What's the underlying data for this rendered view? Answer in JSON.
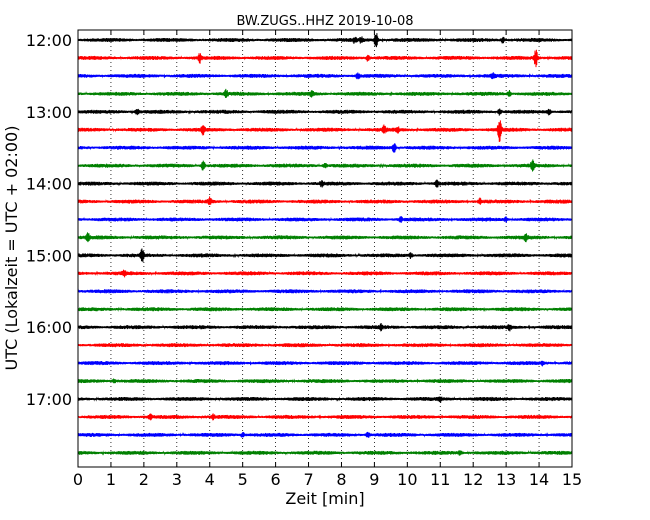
{
  "chart_data": {
    "type": "line",
    "title": "BW.ZUGS..HHZ 2019-10-08",
    "xlabel": "Zeit  [min]",
    "ylabel": "UTC (Lokalzeit = UTC + 02:00)",
    "xlim": [
      0,
      15
    ],
    "x_ticks": [
      "0",
      "1",
      "2",
      "3",
      "4",
      "5",
      "6",
      "7",
      "8",
      "9",
      "10",
      "11",
      "12",
      "13",
      "14",
      "15"
    ],
    "grid": "vertical dotted",
    "y_tick_labels": [
      "12:00",
      "13:00",
      "14:00",
      "15:00",
      "16:00",
      "17:00"
    ],
    "traces_per_hour": 4,
    "trace_minutes": 15,
    "colors": [
      "#000000",
      "#ff0000",
      "#0000ff",
      "#008000"
    ],
    "series": [
      {
        "start": "12:00",
        "color": "#000000",
        "spikes": [
          [
            8.4,
            0.35
          ],
          [
            8.6,
            0.3
          ],
          [
            9.05,
            0.9
          ],
          [
            12.9,
            0.35
          ]
        ]
      },
      {
        "start": "12:15",
        "color": "#ff0000",
        "spikes": [
          [
            3.7,
            0.5
          ],
          [
            8.8,
            0.35
          ],
          [
            13.9,
            1.0
          ]
        ]
      },
      {
        "start": "12:30",
        "color": "#0000ff",
        "spikes": [
          [
            8.5,
            0.35
          ],
          [
            12.6,
            0.3
          ]
        ]
      },
      {
        "start": "12:45",
        "color": "#008000",
        "spikes": [
          [
            4.5,
            0.45
          ],
          [
            7.1,
            0.3
          ],
          [
            13.1,
            0.35
          ]
        ]
      },
      {
        "start": "13:00",
        "color": "#000000",
        "spikes": [
          [
            1.8,
            0.35
          ],
          [
            12.8,
            0.4
          ],
          [
            14.3,
            0.3
          ]
        ]
      },
      {
        "start": "13:15",
        "color": "#ff0000",
        "spikes": [
          [
            3.8,
            0.55
          ],
          [
            9.3,
            0.45
          ],
          [
            9.7,
            0.35
          ],
          [
            12.8,
            1.5
          ]
        ]
      },
      {
        "start": "13:30",
        "color": "#0000ff",
        "spikes": [
          [
            9.6,
            0.65
          ]
        ]
      },
      {
        "start": "13:45",
        "color": "#008000",
        "spikes": [
          [
            3.8,
            0.6
          ],
          [
            7.5,
            0.3
          ],
          [
            13.8,
            0.6
          ]
        ]
      },
      {
        "start": "14:00",
        "color": "#000000",
        "spikes": [
          [
            7.4,
            0.3
          ],
          [
            10.9,
            0.35
          ]
        ]
      },
      {
        "start": "14:15",
        "color": "#ff0000",
        "spikes": [
          [
            4.0,
            0.45
          ],
          [
            12.2,
            0.35
          ]
        ]
      },
      {
        "start": "14:30",
        "color": "#0000ff",
        "spikes": [
          [
            9.8,
            0.3
          ],
          [
            13.0,
            0.25
          ]
        ]
      },
      {
        "start": "14:45",
        "color": "#008000",
        "spikes": [
          [
            0.3,
            0.45
          ],
          [
            13.6,
            0.35
          ]
        ]
      },
      {
        "start": "15:00",
        "color": "#000000",
        "spikes": [
          [
            1.95,
            0.75
          ],
          [
            10.1,
            0.3
          ]
        ]
      },
      {
        "start": "15:15",
        "color": "#ff0000",
        "spikes": [
          [
            1.4,
            0.3
          ]
        ]
      },
      {
        "start": "15:30",
        "color": "#0000ff",
        "spikes": []
      },
      {
        "start": "15:45",
        "color": "#008000",
        "spikes": []
      },
      {
        "start": "16:00",
        "color": "#000000",
        "spikes": [
          [
            9.2,
            0.3
          ],
          [
            13.1,
            0.3
          ]
        ]
      },
      {
        "start": "16:15",
        "color": "#ff0000",
        "spikes": []
      },
      {
        "start": "16:30",
        "color": "#0000ff",
        "spikes": [
          [
            14.1,
            0.25
          ]
        ]
      },
      {
        "start": "16:45",
        "color": "#008000",
        "spikes": [
          [
            1.1,
            0.25
          ]
        ]
      },
      {
        "start": "17:00",
        "color": "#000000",
        "spikes": [
          [
            11.0,
            0.25
          ]
        ]
      },
      {
        "start": "17:15",
        "color": "#ff0000",
        "spikes": [
          [
            2.2,
            0.4
          ],
          [
            4.1,
            0.3
          ]
        ]
      },
      {
        "start": "17:30",
        "color": "#0000ff",
        "spikes": [
          [
            5.0,
            0.3
          ],
          [
            8.8,
            0.3
          ]
        ]
      },
      {
        "start": "17:45",
        "color": "#008000",
        "spikes": [
          [
            11.6,
            0.25
          ]
        ]
      }
    ]
  }
}
